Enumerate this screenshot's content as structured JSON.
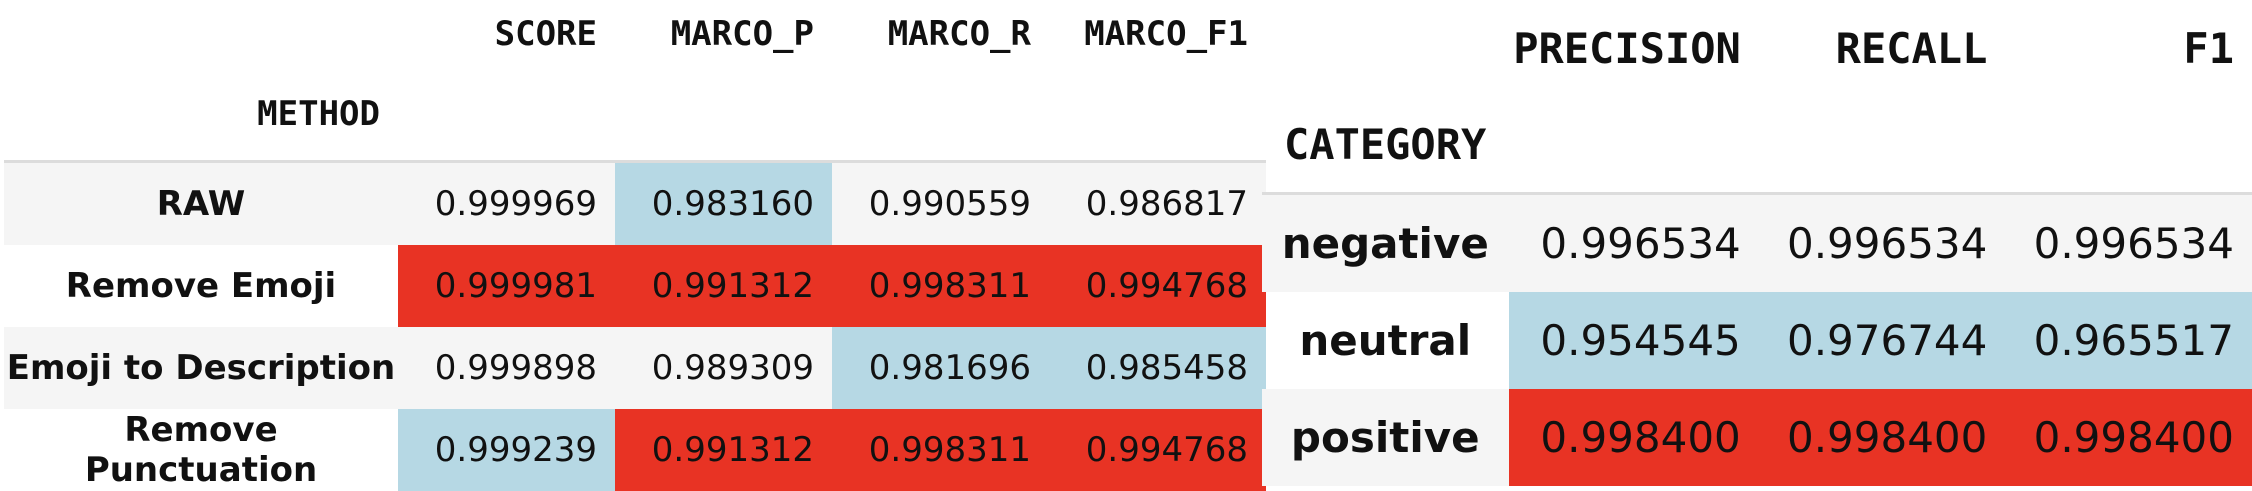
{
  "table1": {
    "columns": [
      "SCORE",
      "MARCO_P",
      "MARCO_R",
      "MARCO_F1"
    ],
    "index_name": "METHOD",
    "rows": [
      {
        "label": "RAW",
        "values": [
          "0.999969",
          "0.983160",
          "0.990559",
          "0.986817"
        ],
        "colors": [
          "none",
          "blue",
          "none",
          "none"
        ]
      },
      {
        "label": "Remove Emoji",
        "values": [
          "0.999981",
          "0.991312",
          "0.998311",
          "0.994768"
        ],
        "colors": [
          "red",
          "red",
          "red",
          "red"
        ]
      },
      {
        "label": "Emoji to Description",
        "values": [
          "0.999898",
          "0.989309",
          "0.981696",
          "0.985458"
        ],
        "colors": [
          "none",
          "none",
          "blue",
          "blue"
        ]
      },
      {
        "label": "Remove Punctuation",
        "values": [
          "0.999239",
          "0.991312",
          "0.998311",
          "0.994768"
        ],
        "colors": [
          "blue",
          "red",
          "red",
          "red"
        ]
      }
    ]
  },
  "table2": {
    "columns": [
      "PRECISION",
      "RECALL",
      "F1"
    ],
    "index_name": "CATEGORY",
    "rows": [
      {
        "label": "negative",
        "values": [
          "0.996534",
          "0.996534",
          "0.996534"
        ],
        "colors": [
          "none",
          "none",
          "none"
        ]
      },
      {
        "label": "neutral",
        "values": [
          "0.954545",
          "0.976744",
          "0.965517"
        ],
        "colors": [
          "blue",
          "blue",
          "blue"
        ]
      },
      {
        "label": "positive",
        "values": [
          "0.998400",
          "0.998400",
          "0.998400"
        ],
        "colors": [
          "red",
          "red",
          "red"
        ]
      }
    ]
  },
  "colors": {
    "highlight_max": "#e83324",
    "highlight_min": "#b6d8e4",
    "stripe": "#f5f5f5"
  },
  "chart_data": [
    {
      "type": "table",
      "index_name": "METHOD",
      "columns": [
        "SCORE",
        "MARCO_P",
        "MARCO_R",
        "MARCO_F1"
      ],
      "rows": [
        "RAW",
        "Remove Emoji",
        "Emoji to Description",
        "Remove Punctuation"
      ],
      "values": [
        [
          0.999969,
          0.98316,
          0.990559,
          0.986817
        ],
        [
          0.999981,
          0.991312,
          0.998311,
          0.994768
        ],
        [
          0.999898,
          0.989309,
          0.981696,
          0.985458
        ],
        [
          0.999239,
          0.991312,
          0.998311,
          0.994768
        ]
      ]
    },
    {
      "type": "table",
      "index_name": "CATEGORY",
      "columns": [
        "PRECISION",
        "RECALL",
        "F1"
      ],
      "rows": [
        "negative",
        "neutral",
        "positive"
      ],
      "values": [
        [
          0.996534,
          0.996534,
          0.996534
        ],
        [
          0.954545,
          0.976744,
          0.965517
        ],
        [
          0.9984,
          0.9984,
          0.9984
        ]
      ]
    }
  ]
}
